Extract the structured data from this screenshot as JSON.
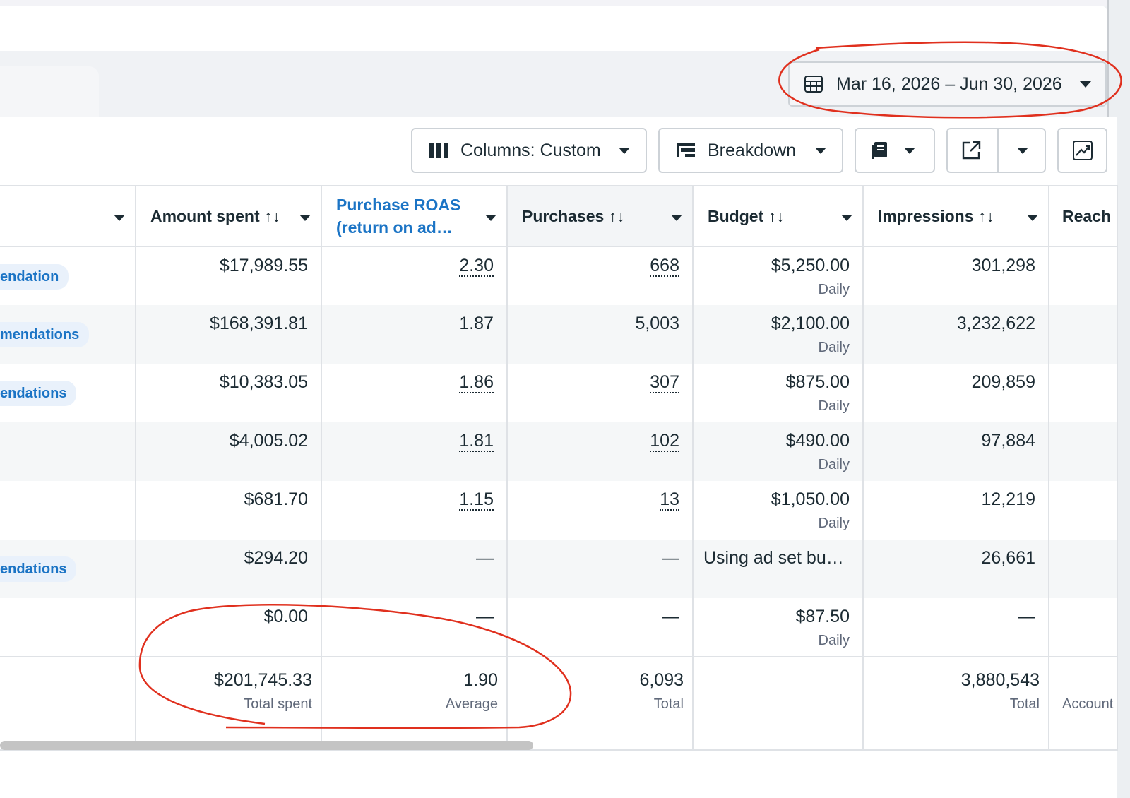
{
  "date_range": {
    "label": "Mar 16, 2026 – Jun 30, 2026"
  },
  "toolbar": {
    "columns_label": "Columns: Custom",
    "breakdown_label": "Breakdown"
  },
  "columns": [
    {
      "label": ""
    },
    {
      "label": "Amount spent ↑↓"
    },
    {
      "label": "Purchase ROAS (return on ad…"
    },
    {
      "label": "Purchases ↑↓"
    },
    {
      "label": "Budget ↑↓"
    },
    {
      "label": "Impressions ↑↓"
    },
    {
      "label": "Reach"
    }
  ],
  "rows": [
    {
      "tag": "endation",
      "amount": "$17,989.55",
      "roas": "2.30",
      "purchases": "668",
      "budget": "$5,250.00",
      "budget_sub": "Daily",
      "impressions": "301,298"
    },
    {
      "tag": "mendations",
      "amount": "$168,391.81",
      "roas": "1.87",
      "purchases": "5,003",
      "budget": "$2,100.00",
      "budget_sub": "Daily",
      "impressions": "3,232,622"
    },
    {
      "tag": "endations",
      "amount": "$10,383.05",
      "roas": "1.86",
      "purchases": "307",
      "budget": "$875.00",
      "budget_sub": "Daily",
      "impressions": "209,859"
    },
    {
      "tag": "",
      "amount": "$4,005.02",
      "roas": "1.81",
      "purchases": "102",
      "budget": "$490.00",
      "budget_sub": "Daily",
      "impressions": "97,884"
    },
    {
      "tag": "",
      "amount": "$681.70",
      "roas": "1.15",
      "purchases": "13",
      "budget": "$1,050.00",
      "budget_sub": "Daily",
      "impressions": "12,219"
    },
    {
      "tag": "endations",
      "amount": "$294.20",
      "roas": "—",
      "purchases": "—",
      "budget": "Using ad set bu…",
      "budget_sub": "",
      "impressions": "26,661"
    },
    {
      "tag": "",
      "amount": "$0.00",
      "roas": "—",
      "purchases": "—",
      "budget": "$87.50",
      "budget_sub": "Daily",
      "impressions": "—"
    }
  ],
  "totals": {
    "amount": "$201,745.33",
    "amount_sub": "Total spent",
    "roas": "1.90",
    "roas_sub": "Average",
    "purchases": "6,093",
    "purchases_sub": "Total",
    "impressions": "3,880,543",
    "impressions_sub": "Total",
    "reach_sub": "Account"
  },
  "colors": {
    "link_blue": "#1b74c5",
    "annotation_red": "#e0301e"
  }
}
